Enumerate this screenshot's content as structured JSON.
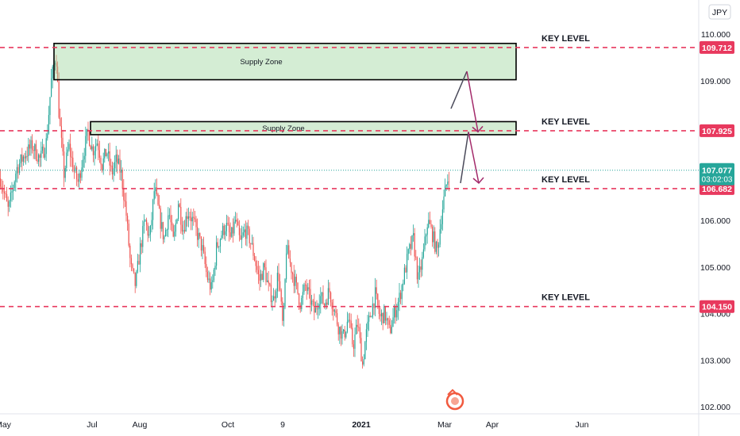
{
  "currency": "JPY",
  "chart_data": {
    "type": "candlestick",
    "currency": "JPY",
    "ylim": [
      101.8,
      110.3
    ],
    "y_ticks": [
      "110.000",
      "109.000",
      "106.000",
      "105.000",
      "103.000",
      "102.000"
    ],
    "y_ticks_partial": [
      "104.000"
    ],
    "x_ticks": [
      "May",
      "Jul",
      "Aug",
      "Oct",
      "9",
      "2021",
      "Mar",
      "Apr",
      "Jun"
    ],
    "current_price": {
      "value": 107.077,
      "label": "107.077",
      "countdown": "03:02:03"
    },
    "key_levels": [
      {
        "value": 109.712,
        "label": "109.712",
        "text": "KEY LEVEL"
      },
      {
        "value": 107.925,
        "label": "107.925",
        "text": "KEY LEVEL"
      },
      {
        "value": 106.682,
        "label": "106.682",
        "text": "KEY LEVEL"
      },
      {
        "value": 104.15,
        "label": "104.150",
        "text": "KEY LEVEL"
      }
    ],
    "supply_zones": [
      {
        "label": "Supply Zone",
        "top": 109.8,
        "bottom": 109.02
      },
      {
        "label": "Supply Zone",
        "top": 108.12,
        "bottom": 107.84
      }
    ],
    "price_path": [
      [
        0,
        106.9
      ],
      [
        10,
        106.2
      ],
      [
        20,
        107.1
      ],
      [
        30,
        107.4
      ],
      [
        40,
        107.6
      ],
      [
        50,
        107.3
      ],
      [
        58,
        107.7
      ],
      [
        64,
        109.0
      ],
      [
        70,
        109.6
      ],
      [
        74,
        108.2
      ],
      [
        80,
        107.0
      ],
      [
        86,
        107.6
      ],
      [
        92,
        107.1
      ],
      [
        98,
        106.8
      ],
      [
        104,
        107.4
      ],
      [
        110,
        107.9
      ],
      [
        116,
        107.5
      ],
      [
        122,
        107.7
      ],
      [
        128,
        107.2
      ],
      [
        134,
        107.5
      ],
      [
        140,
        107.0
      ],
      [
        146,
        107.3
      ],
      [
        152,
        107.0
      ],
      [
        158,
        106.2
      ],
      [
        164,
        105.0
      ],
      [
        170,
        104.6
      ],
      [
        176,
        105.4
      ],
      [
        182,
        106.0
      ],
      [
        188,
        105.6
      ],
      [
        194,
        106.7
      ],
      [
        200,
        106.1
      ],
      [
        206,
        105.6
      ],
      [
        212,
        106.2
      ],
      [
        218,
        105.5
      ],
      [
        224,
        106.4
      ],
      [
        230,
        105.8
      ],
      [
        236,
        106.2
      ],
      [
        242,
        106.0
      ],
      [
        248,
        105.7
      ],
      [
        254,
        105.4
      ],
      [
        260,
        104.8
      ],
      [
        266,
        104.5
      ],
      [
        272,
        105.4
      ],
      [
        278,
        105.7
      ],
      [
        284,
        105.9
      ],
      [
        290,
        105.6
      ],
      [
        296,
        106.0
      ],
      [
        302,
        105.5
      ],
      [
        308,
        105.8
      ],
      [
        314,
        105.6
      ],
      [
        320,
        105.2
      ],
      [
        326,
        104.7
      ],
      [
        332,
        105.0
      ],
      [
        338,
        104.5
      ],
      [
        344,
        104.3
      ],
      [
        350,
        104.9
      ],
      [
        356,
        103.6
      ],
      [
        360,
        105.4
      ],
      [
        366,
        105.0
      ],
      [
        372,
        104.6
      ],
      [
        378,
        104.2
      ],
      [
        384,
        104.6
      ],
      [
        390,
        104.3
      ],
      [
        396,
        104.0
      ],
      [
        402,
        104.4
      ],
      [
        408,
        104.2
      ],
      [
        414,
        104.5
      ],
      [
        420,
        104.1
      ],
      [
        426,
        103.7
      ],
      [
        432,
        103.5
      ],
      [
        438,
        103.9
      ],
      [
        444,
        103.3
      ],
      [
        450,
        103.8
      ],
      [
        456,
        102.9
      ],
      [
        460,
        103.5
      ],
      [
        466,
        104.0
      ],
      [
        472,
        104.4
      ],
      [
        478,
        103.9
      ],
      [
        484,
        104.0
      ],
      [
        490,
        103.6
      ],
      [
        496,
        104.0
      ],
      [
        502,
        104.3
      ],
      [
        508,
        104.8
      ],
      [
        514,
        105.3
      ],
      [
        520,
        105.6
      ],
      [
        526,
        104.7
      ],
      [
        532,
        105.2
      ],
      [
        538,
        106.0
      ],
      [
        544,
        105.7
      ],
      [
        550,
        105.3
      ],
      [
        556,
        106.2
      ],
      [
        562,
        106.8
      ],
      [
        566,
        107.077
      ]
    ],
    "projection_arrows": [
      [
        [
          568,
          108.4
        ],
        [
          588,
          109.2
        ],
        [
          602,
          107.9
        ]
      ],
      [
        [
          580,
          106.8
        ],
        [
          590,
          107.9
        ],
        [
          603,
          106.8
        ]
      ]
    ]
  }
}
